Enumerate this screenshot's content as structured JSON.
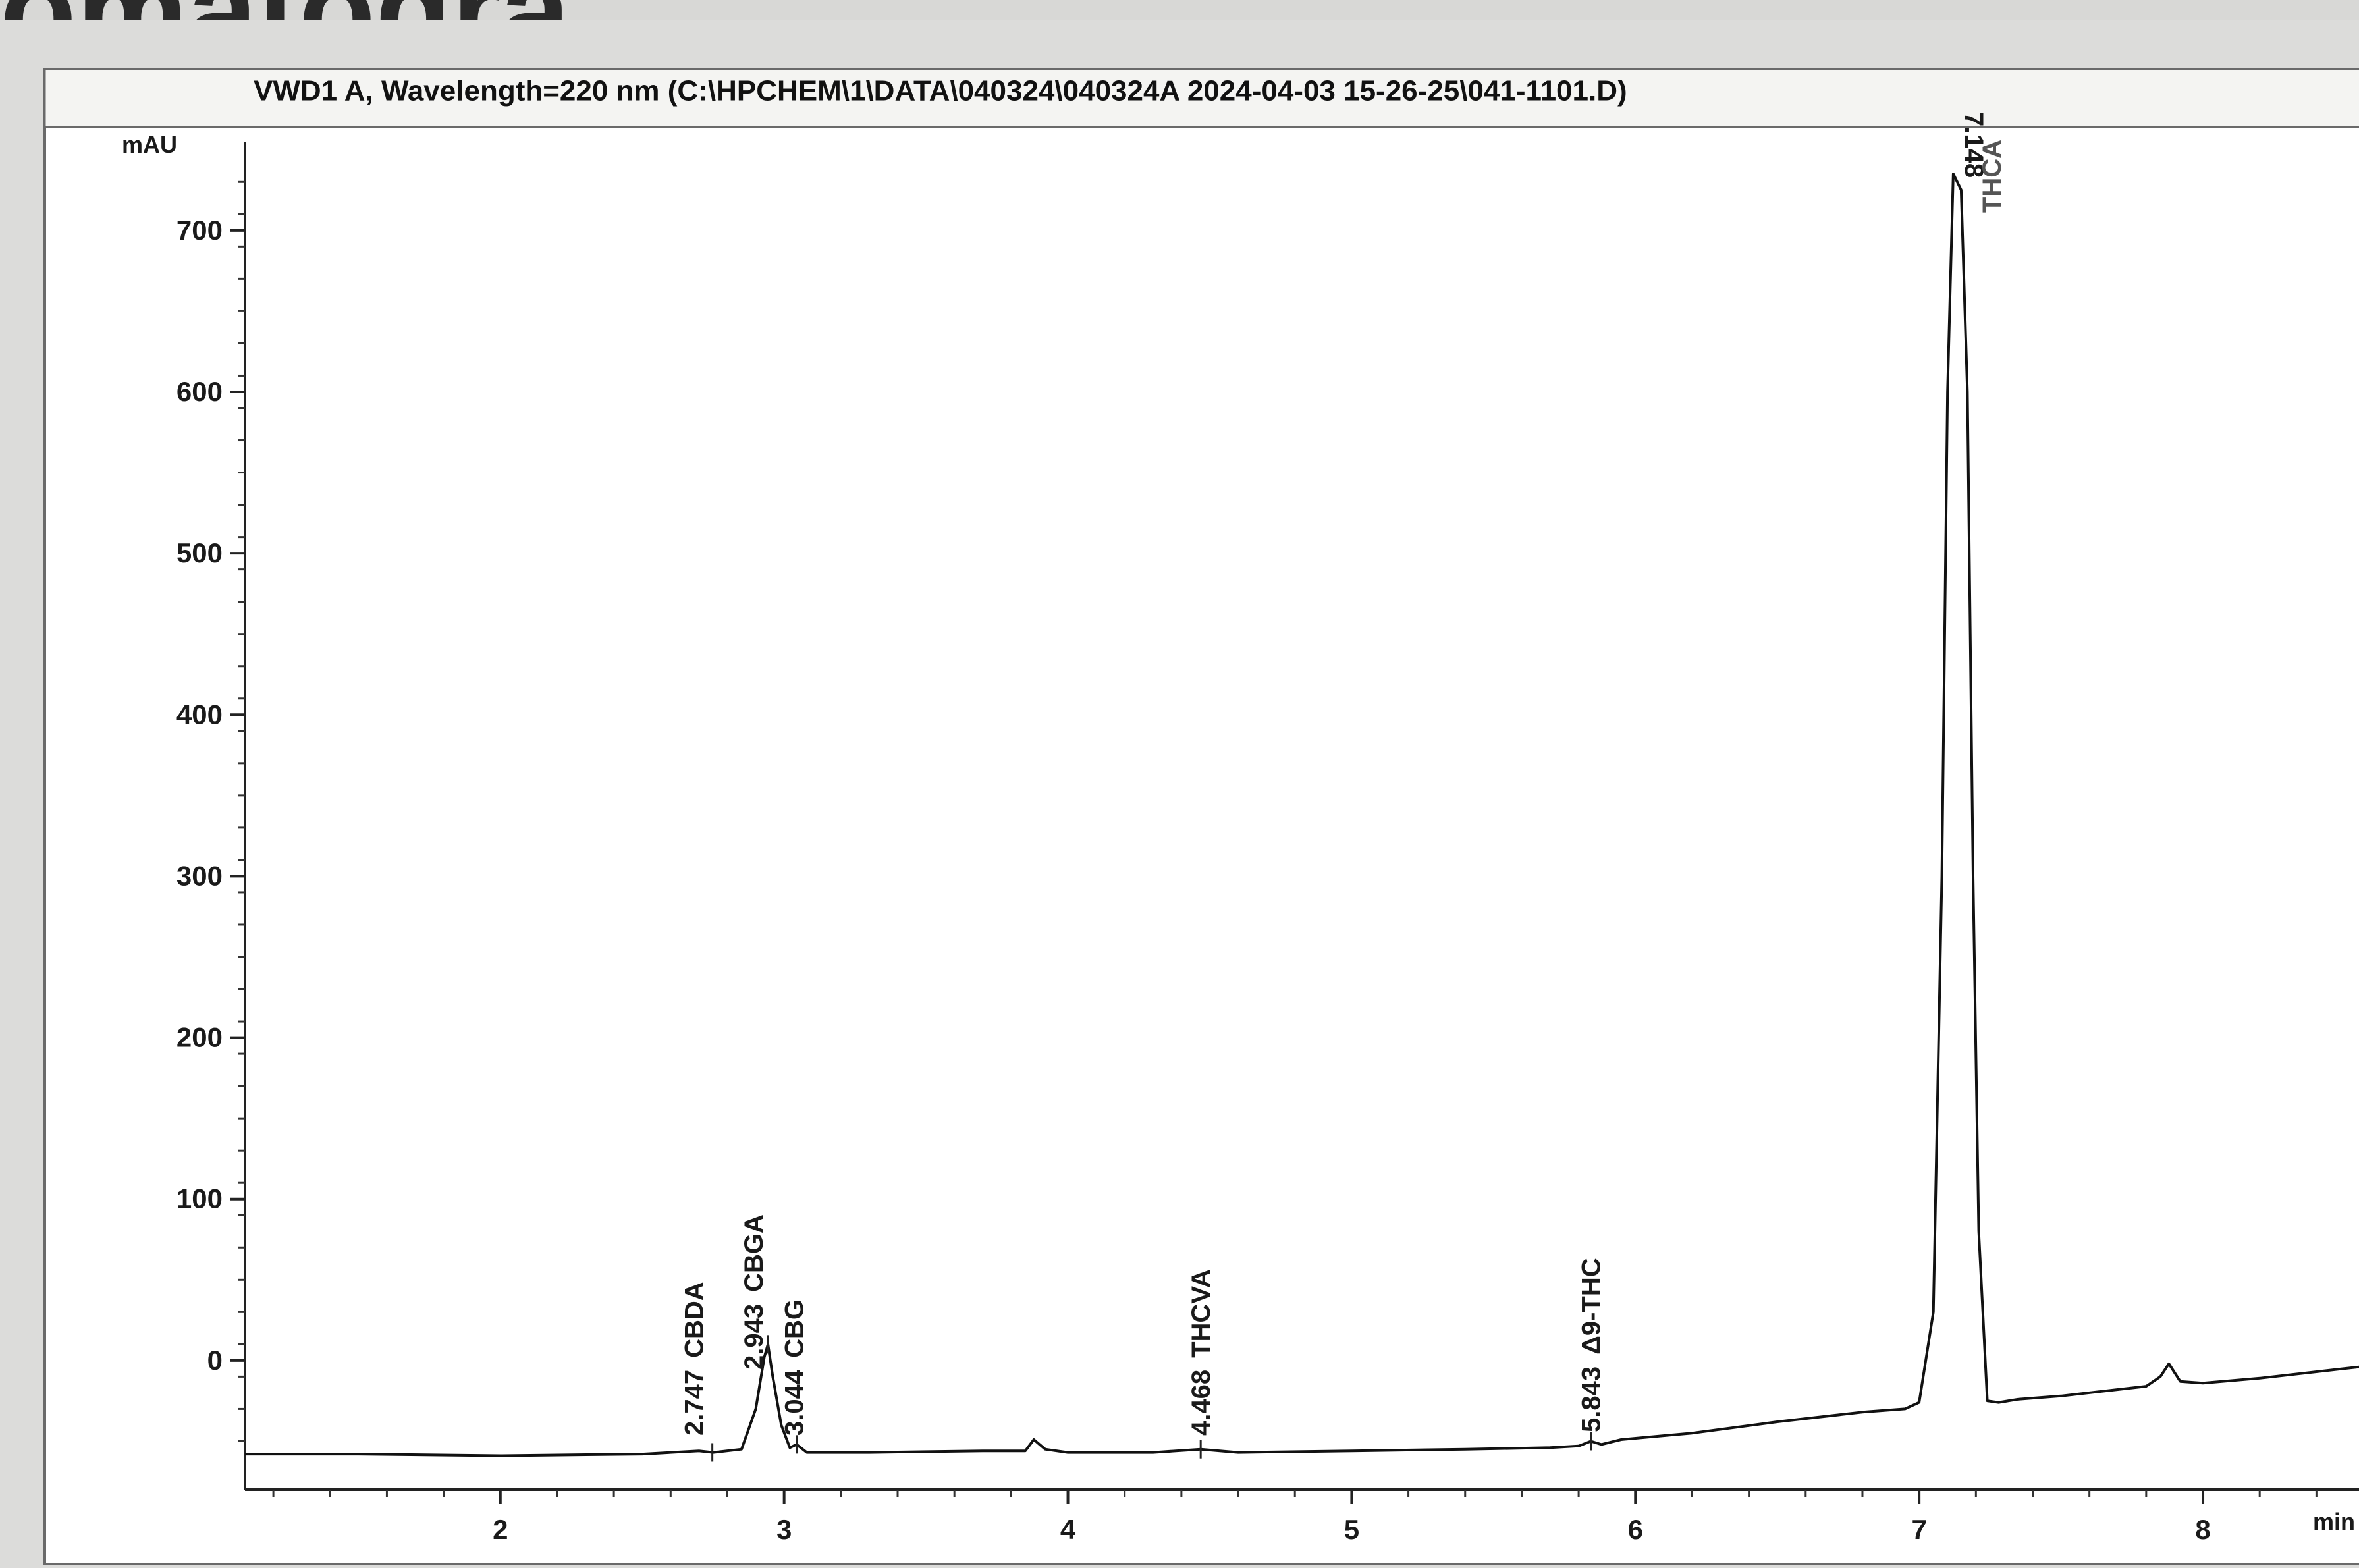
{
  "chart_data": {
    "type": "line",
    "title": "VWD1 A, Wavelength=220 nm (C:\\HPCHEM\\1\\DATA\\040324\\040324A 2024-04-03 15-26-25\\041-1101.D)",
    "xlabel": "min",
    "ylabel": "mAU",
    "xlim": [
      1.1,
      8.55
    ],
    "ylim": [
      -80,
      755
    ],
    "x_ticks": [
      2,
      3,
      4,
      5,
      6,
      7,
      8
    ],
    "y_ticks": [
      0,
      100,
      200,
      300,
      400,
      500,
      600,
      700
    ],
    "grid": false,
    "legend": "none",
    "series": [
      {
        "color": "#111111",
        "x": [
          1.1,
          1.5,
          2.0,
          2.5,
          2.7,
          2.75,
          2.85,
          2.9,
          2.93,
          2.943,
          2.96,
          2.99,
          3.02,
          3.044,
          3.08,
          3.3,
          3.7,
          3.85,
          3.88,
          3.92,
          4.0,
          4.3,
          4.468,
          4.6,
          5.0,
          5.4,
          5.7,
          5.8,
          5.843,
          5.88,
          5.95,
          6.2,
          6.5,
          6.8,
          6.95,
          7.0,
          7.05,
          7.08,
          7.1,
          7.12,
          7.148,
          7.17,
          7.19,
          7.21,
          7.24,
          7.28,
          7.35,
          7.5,
          7.7,
          7.8,
          7.85,
          7.88,
          7.92,
          8.0,
          8.2,
          8.55
        ],
        "y": [
          -58,
          -58,
          -59,
          -58,
          -56,
          -57,
          -55,
          -30,
          2,
          10,
          -10,
          -40,
          -54,
          -52,
          -57,
          -57,
          -56,
          -56,
          -49,
          -55,
          -57,
          -57,
          -55,
          -57,
          -56,
          -55,
          -54,
          -53,
          -50,
          -52,
          -49,
          -45,
          -38,
          -32,
          -30,
          -26,
          30,
          300,
          600,
          735,
          725,
          600,
          300,
          80,
          -25,
          -26,
          -24,
          -22,
          -18,
          -16,
          -10,
          -2,
          -13,
          -14,
          -11,
          -4
        ]
      }
    ],
    "peaks": [
      {
        "time": "2.747",
        "name": "CBDA",
        "x": 2.747
      },
      {
        "time": "2.943",
        "name": "CBGA",
        "x": 2.943
      },
      {
        "time": "3.044",
        "name": "CBG",
        "x": 3.044
      },
      {
        "time": "4.468",
        "name": "THCVA",
        "x": 4.468
      },
      {
        "time": "5.843",
        "name": "Δ9-THC",
        "x": 5.843
      },
      {
        "time": "7.148",
        "name": "THCA",
        "x": 7.148
      }
    ]
  },
  "page": {
    "top_fragment": "omatogra"
  }
}
